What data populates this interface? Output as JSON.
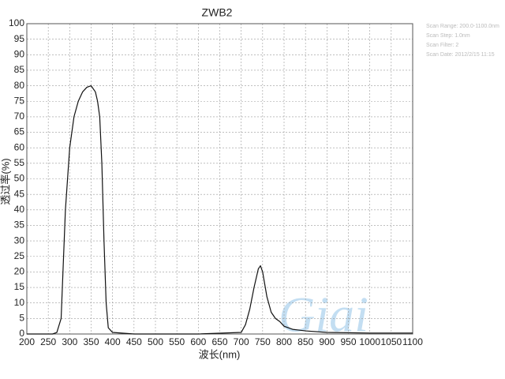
{
  "chart_data": {
    "type": "line",
    "title": "ZWB2",
    "xlabel": "波长(nm)",
    "ylabel": "透过率(%)",
    "annotations": [
      "Scan Range: 200.0-1100.0nm",
      "Scan Step: 1.0nm",
      "Scan Filter: 2",
      "Scan Date: 2012/2/15 11:15"
    ],
    "watermark": "Giai",
    "x": [
      200,
      260,
      270,
      280,
      290,
      300,
      310,
      320,
      330,
      340,
      350,
      360,
      365,
      370,
      375,
      380,
      385,
      390,
      400,
      450,
      600,
      700,
      710,
      720,
      730,
      740,
      745,
      750,
      760,
      770,
      780,
      790,
      800,
      820,
      850,
      900,
      1000,
      1100
    ],
    "series": [
      {
        "name": "ZWB2",
        "color": "#111111",
        "values": [
          0,
          0,
          0.5,
          5,
          40,
          60,
          70,
          75,
          78,
          79.5,
          80,
          78,
          75,
          70,
          55,
          30,
          10,
          2,
          0.5,
          0,
          0,
          0.5,
          3,
          8,
          15,
          21,
          22,
          20,
          12,
          7,
          5,
          4,
          2.5,
          1.5,
          1,
          0.5,
          0.3,
          0.3
        ]
      }
    ],
    "xlim": [
      200,
      1100
    ],
    "ylim": [
      0,
      100
    ],
    "xticks": [
      200,
      250,
      300,
      350,
      400,
      450,
      500,
      550,
      600,
      650,
      700,
      750,
      800,
      850,
      900,
      950,
      1000,
      1050,
      1100
    ],
    "yticks": [
      0,
      5,
      10,
      15,
      20,
      25,
      30,
      35,
      40,
      45,
      50,
      55,
      60,
      65,
      70,
      75,
      80,
      85,
      90,
      95,
      100
    ],
    "grid": true
  }
}
